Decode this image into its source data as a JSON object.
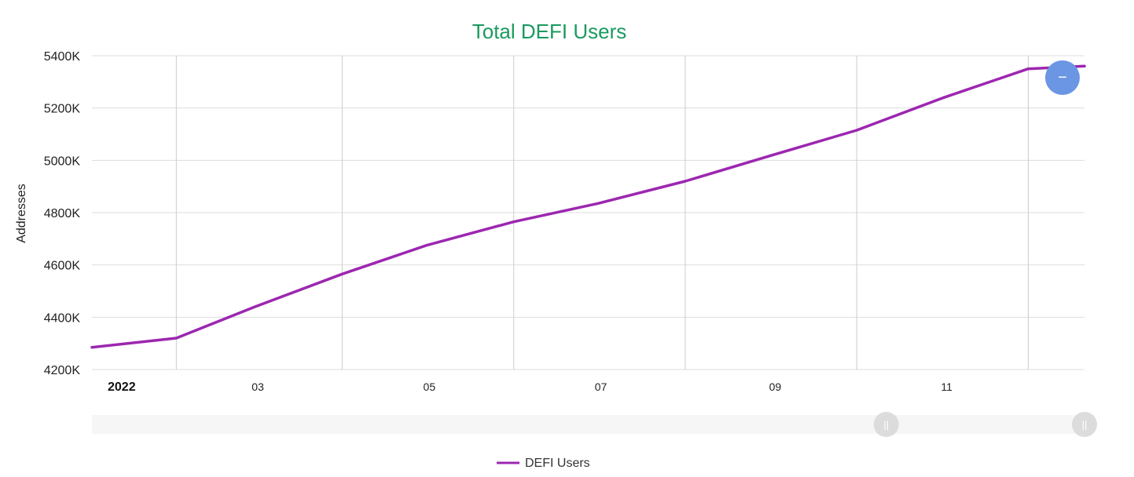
{
  "colors": {
    "title": "#1a9a5f",
    "series": "#9c27b0",
    "grid": "#dddddd",
    "vgrid": "#cccccc",
    "zoom_button": "#6a96e3",
    "slider_track": "#f6f6f6",
    "slider_handle": "#dcdcdc"
  },
  "zoom_button": {
    "icon": "minus-icon",
    "glyph": "−"
  },
  "slider": {
    "handle_glyph": "||",
    "range": [
      0.79,
      1.0
    ]
  },
  "legend": {
    "label": "DEFI Users"
  },
  "chart_data": {
    "type": "line",
    "title": "Total DEFI Users",
    "ylabel": "Addresses",
    "xlabel": "",
    "ylim": [
      4200,
      5400
    ],
    "yticks": [
      4200,
      4400,
      4600,
      4800,
      5000,
      5200,
      5400
    ],
    "ytick_labels": [
      "4200K",
      "4400K",
      "4600K",
      "4800K",
      "5000K",
      "5200K",
      "5400K"
    ],
    "xlim": [
      "2022-01-01",
      "2022-12-20"
    ],
    "xticks": [
      {
        "date": "2022-01-01",
        "label": "2022",
        "bold": true
      },
      {
        "date": "2022-03-01",
        "label": "03",
        "bold": false
      },
      {
        "date": "2022-05-01",
        "label": "05",
        "bold": false
      },
      {
        "date": "2022-07-01",
        "label": "07",
        "bold": false
      },
      {
        "date": "2022-09-01",
        "label": "09",
        "bold": false
      },
      {
        "date": "2022-11-01",
        "label": "11",
        "bold": false
      }
    ],
    "vertical_gridlines": [
      "2022-01-31",
      "2022-03-31",
      "2022-05-31",
      "2022-07-31",
      "2022-09-30",
      "2022-11-30"
    ],
    "grid": true,
    "legend_position": "bottom",
    "series": [
      {
        "name": "DEFI Users",
        "x": [
          "2022-01-01",
          "2022-01-31",
          "2022-02-28",
          "2022-03-31",
          "2022-04-30",
          "2022-05-31",
          "2022-06-30",
          "2022-07-31",
          "2022-08-31",
          "2022-09-30",
          "2022-10-31",
          "2022-11-30",
          "2022-12-20"
        ],
        "values": [
          4285,
          4320,
          4440,
          4565,
          4675,
          4765,
          4835,
          4920,
          5020,
          5115,
          5240,
          5350,
          5360
        ]
      }
    ]
  }
}
